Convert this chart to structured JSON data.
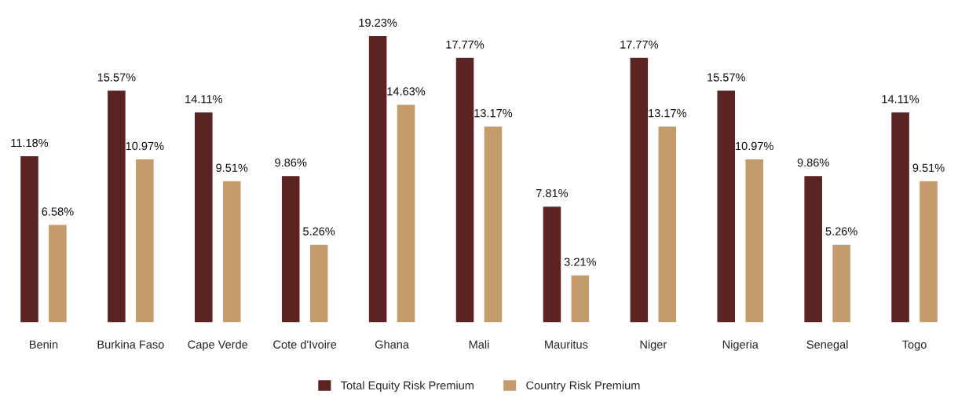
{
  "chart_data": {
    "type": "bar",
    "categories": [
      "Benin",
      "Burkina Faso",
      "Cape Verde",
      "Cote d'Ivoire",
      "Ghana",
      "Mali",
      "Mauritus",
      "Niger",
      "Nigeria",
      "Senegal",
      "Togo"
    ],
    "series": [
      {
        "name": "Total Equity Risk Premium",
        "color": "#5c2323",
        "values": [
          11.18,
          15.57,
          14.11,
          9.86,
          19.23,
          17.77,
          7.81,
          17.77,
          15.57,
          9.86,
          14.11
        ],
        "value_labels": [
          "11.18%",
          "15.57%",
          "14.11%",
          "9.86%",
          "19.23%",
          "17.77%",
          "7.81%",
          "17.77%",
          "15.57%",
          "9.86%",
          "14.11%"
        ]
      },
      {
        "name": "Country Risk Premium",
        "color": "#c49c6c",
        "values": [
          6.58,
          10.97,
          9.51,
          5.26,
          14.63,
          13.17,
          3.21,
          13.17,
          10.97,
          5.26,
          9.51
        ],
        "value_labels": [
          "6.58%",
          "10.97%",
          "9.51%",
          "5.26%",
          "14.63%",
          "13.17%",
          "3.21%",
          "13.17%",
          "10.97%",
          "5.26%",
          "9.51%"
        ]
      }
    ],
    "tick_labels": "x",
    "grid": false,
    "legend": "bottom"
  }
}
